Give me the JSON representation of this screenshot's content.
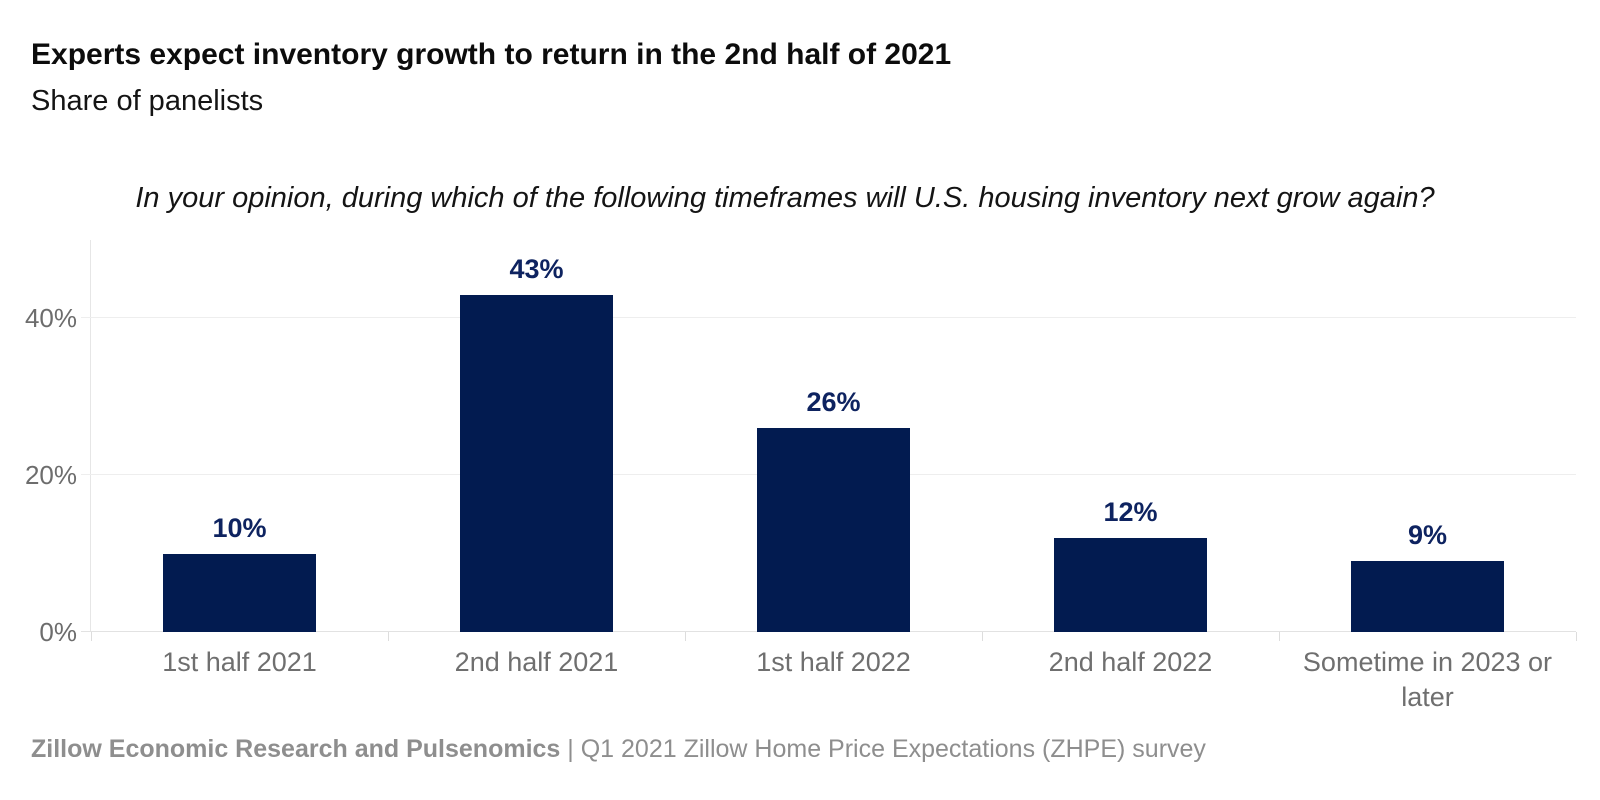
{
  "header": {
    "title": "Experts expect inventory growth to return in the 2nd half of 2021",
    "subtitle": "Share of panelists"
  },
  "question": "In your opinion, during which of the following timeframes will U.S. housing inventory next grow again?",
  "chart_data": {
    "type": "bar",
    "title": "Experts expect inventory growth to return in the 2nd half of 2021",
    "subtitle": "Share of panelists",
    "categories": [
      "1st half 2021",
      "2nd half 2021",
      "1st half 2022",
      "2nd half 2022",
      "Sometime in 2023 or later"
    ],
    "values": [
      10,
      43,
      26,
      12,
      9
    ],
    "value_labels": [
      "10%",
      "43%",
      "26%",
      "12%",
      "9%"
    ],
    "xlabel": "",
    "ylabel": "",
    "ylim": [
      0,
      50
    ],
    "yticks": [
      {
        "value": 0,
        "label": "0%"
      },
      {
        "value": 20,
        "label": "20%"
      },
      {
        "value": 40,
        "label": "40%"
      }
    ],
    "grid": true,
    "legend": "none",
    "bar_color": "#021b50",
    "value_label_color": "#0e2360",
    "axis_label_color": "#6d6d6d"
  },
  "footer": {
    "source_bold": "Zillow Economic Research and Pulsenomics",
    "source_rest": " | Q1 2021 Zillow Home Price Expectations (ZHPE) survey"
  }
}
